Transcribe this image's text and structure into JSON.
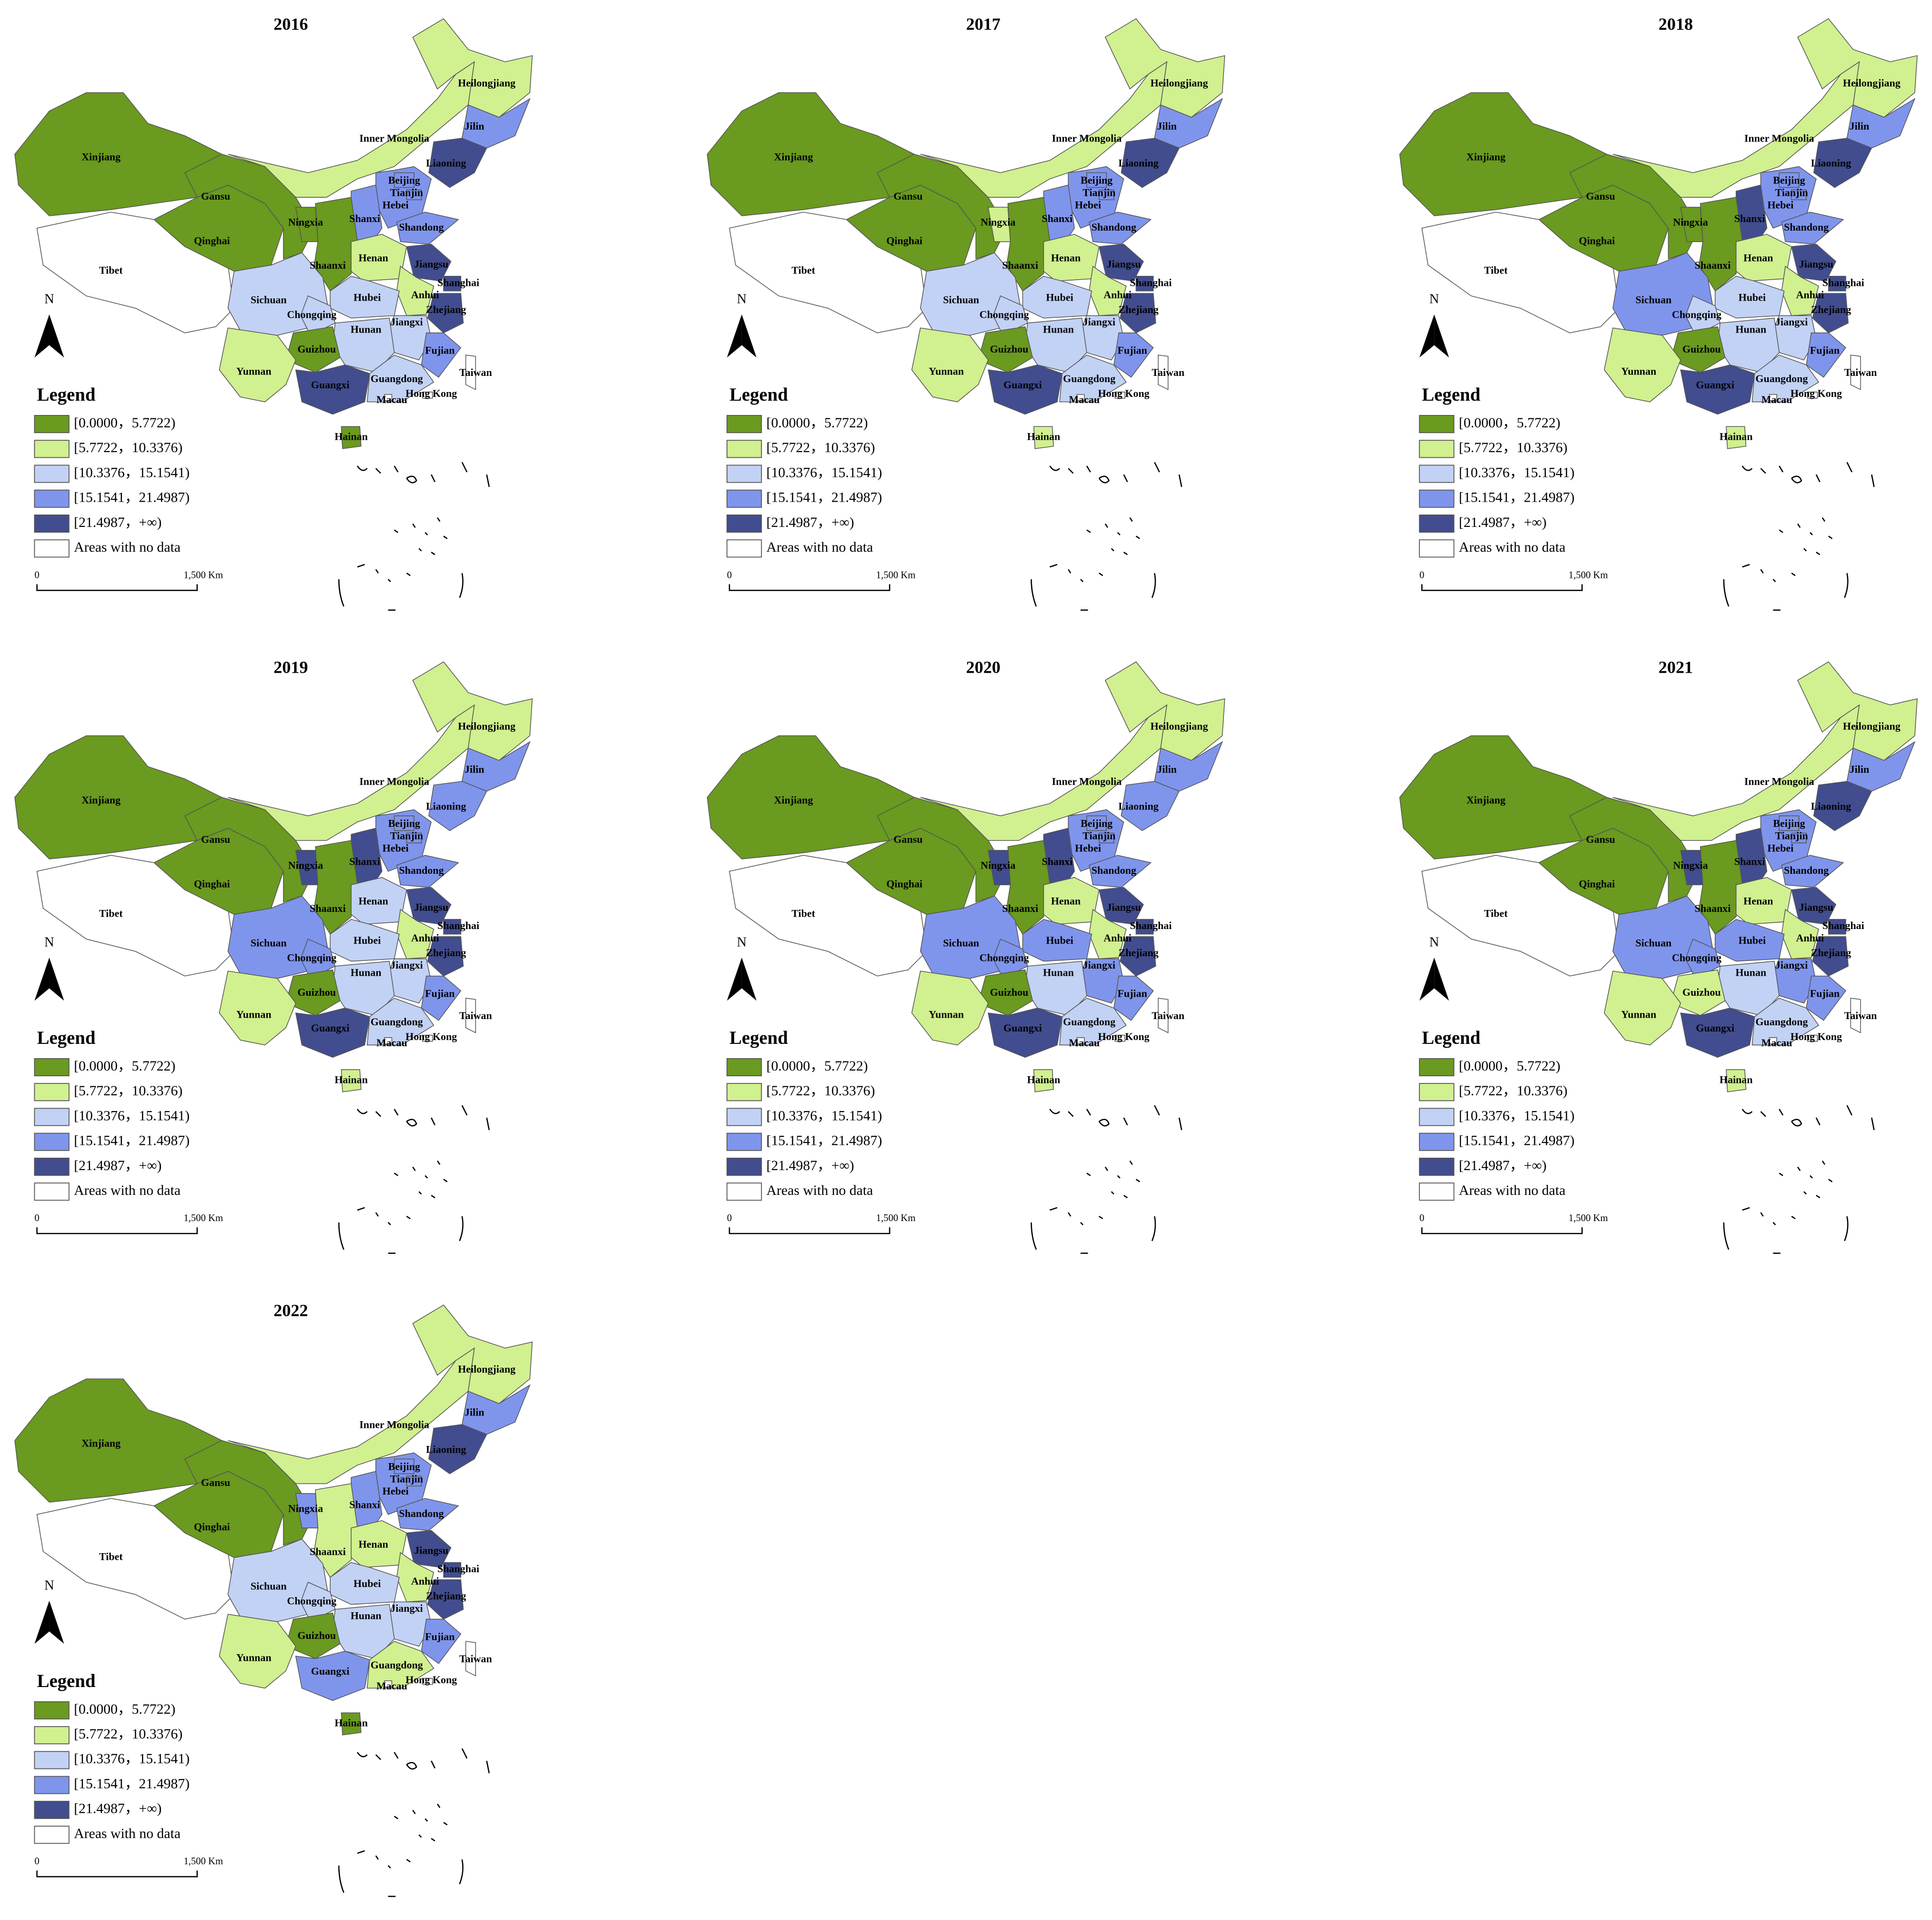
{
  "region_names": [
    "Xinjiang",
    "Tibet",
    "Qinghai",
    "Gansu",
    "Inner Mongolia",
    "Heilongjiang",
    "Jilin",
    "Liaoning",
    "Hebei",
    "Beijing",
    "Tianjin",
    "Shanxi",
    "Shandong",
    "Ningxia",
    "Shaanxi",
    "Henan",
    "Jiangsu",
    "Shanghai",
    "Anhui",
    "Hubei",
    "Sichuan",
    "Chongqing",
    "Zhejiang",
    "Jiangxi",
    "Hunan",
    "Guizhou",
    "Fujian",
    "Yunnan",
    "Guangxi",
    "Guangdong",
    "Hong Kong",
    "Macau",
    "Taiwan",
    "Hainan"
  ],
  "legend": {
    "title": "Legend",
    "items": [
      "[0.0000，5.7722)",
      "[5.7722，10.3376)",
      "[10.3376，15.1541)",
      "[15.1541，21.4987)",
      "[21.4987，+∞)",
      "Areas with no data"
    ],
    "colors": [
      "#6a9a1f",
      "#d1f08f",
      "#c2d2f5",
      "#7f95ec",
      "#414d8e",
      "#ffffff"
    ]
  },
  "north": "N",
  "scale_labels": [
    "0",
    "1,500 Km"
  ],
  "maps": [
    {
      "title": "2016",
      "classes": [
        0,
        null,
        0,
        0,
        1,
        1,
        3,
        4,
        3,
        3,
        3,
        3,
        3,
        0,
        0,
        1,
        4,
        4,
        1,
        2,
        2,
        2,
        4,
        2,
        2,
        0,
        3,
        1,
        4,
        2,
        null,
        null,
        null,
        0
      ]
    },
    {
      "title": "2017",
      "classes": [
        0,
        null,
        0,
        0,
        1,
        1,
        3,
        4,
        3,
        3,
        3,
        3,
        3,
        1,
        0,
        1,
        4,
        4,
        1,
        2,
        2,
        2,
        4,
        2,
        2,
        0,
        3,
        1,
        4,
        2,
        null,
        null,
        null,
        1
      ]
    },
    {
      "title": "2018",
      "classes": [
        0,
        null,
        0,
        0,
        1,
        1,
        3,
        4,
        3,
        3,
        3,
        4,
        3,
        0,
        0,
        1,
        4,
        4,
        1,
        2,
        3,
        2,
        4,
        2,
        2,
        0,
        3,
        1,
        4,
        2,
        null,
        null,
        null,
        1
      ]
    },
    {
      "title": "2019",
      "classes": [
        0,
        null,
        0,
        0,
        1,
        1,
        3,
        3,
        3,
        3,
        3,
        4,
        3,
        4,
        0,
        2,
        4,
        4,
        1,
        2,
        3,
        3,
        4,
        2,
        2,
        0,
        3,
        1,
        4,
        2,
        null,
        null,
        null,
        1
      ]
    },
    {
      "title": "2020",
      "classes": [
        0,
        null,
        0,
        0,
        1,
        1,
        3,
        3,
        3,
        3,
        3,
        4,
        3,
        4,
        0,
        1,
        4,
        4,
        1,
        3,
        3,
        3,
        4,
        3,
        2,
        0,
        3,
        1,
        4,
        2,
        null,
        null,
        null,
        1
      ]
    },
    {
      "title": "2021",
      "classes": [
        0,
        null,
        0,
        0,
        1,
        1,
        3,
        4,
        3,
        3,
        3,
        4,
        3,
        4,
        0,
        1,
        4,
        4,
        1,
        3,
        3,
        3,
        4,
        3,
        2,
        1,
        3,
        1,
        4,
        2,
        null,
        null,
        null,
        1
      ]
    },
    {
      "title": "2022",
      "classes": [
        0,
        null,
        0,
        0,
        1,
        1,
        3,
        4,
        3,
        3,
        3,
        3,
        3,
        3,
        1,
        1,
        4,
        4,
        1,
        2,
        2,
        2,
        4,
        2,
        2,
        0,
        3,
        1,
        3,
        1,
        null,
        null,
        null,
        0
      ]
    }
  ]
}
